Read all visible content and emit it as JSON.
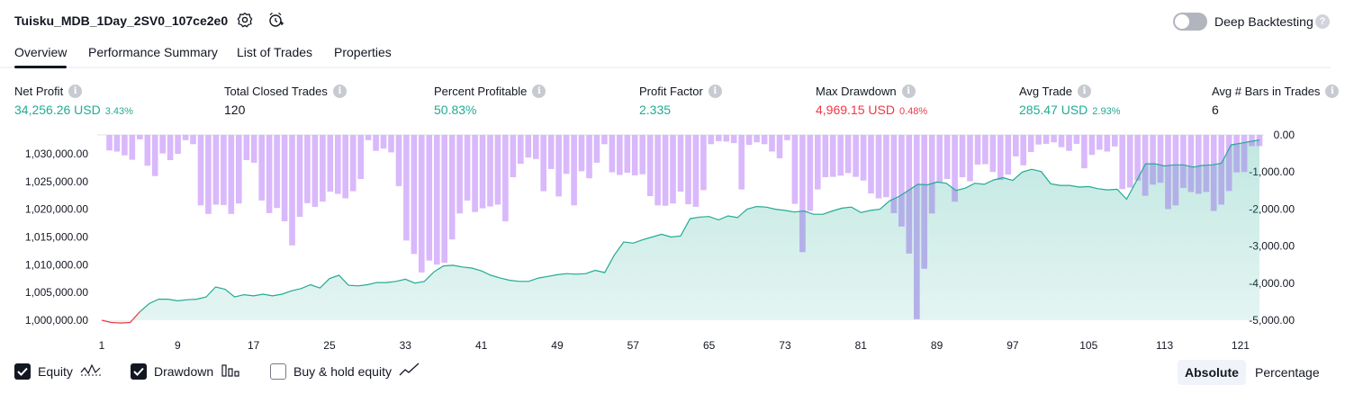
{
  "header": {
    "title": "Tuisku_MDB_1Day_2SV0_107ce2e0",
    "deep_backtesting_label": "Deep Backtesting",
    "deep_backtesting_on": false
  },
  "tabs": [
    {
      "label": "Overview",
      "active": true
    },
    {
      "label": "Performance Summary",
      "active": false
    },
    {
      "label": "List of Trades",
      "active": false
    },
    {
      "label": "Properties",
      "active": false
    }
  ],
  "stats": [
    {
      "label": "Net Profit",
      "value": "34,256.26 USD",
      "sub": "3.43%",
      "color": "green"
    },
    {
      "label": "Total Closed Trades",
      "value": "120",
      "sub": "",
      "color": "dark"
    },
    {
      "label": "Percent Profitable",
      "value": "50.83%",
      "sub": "",
      "color": "green"
    },
    {
      "label": "Profit Factor",
      "value": "2.335",
      "sub": "",
      "color": "green"
    },
    {
      "label": "Max Drawdown",
      "value": "4,969.15 USD",
      "sub": "0.48%",
      "color": "red"
    },
    {
      "label": "Avg Trade",
      "value": "285.47 USD",
      "sub": "2.93%",
      "color": "green"
    },
    {
      "label": "Avg # Bars in Trades",
      "value": "6",
      "sub": "",
      "color": "dark"
    }
  ],
  "chart_data": {
    "type": "line",
    "x_ticks": [
      "1",
      "9",
      "17",
      "25",
      "33",
      "41",
      "49",
      "57",
      "65",
      "73",
      "81",
      "89",
      "97",
      "105",
      "113",
      "121"
    ],
    "left_axis": {
      "ticks": [
        "1,030,000.00",
        "1,025,000.00",
        "1,020,000.00",
        "1,015,000.00",
        "1,010,000.00",
        "1,005,000.00",
        "1,000,000.00"
      ],
      "ylim": [
        1000000,
        1033400
      ]
    },
    "right_axis": {
      "ticks": [
        "0.00",
        "-1,000.00",
        "-2,000.00",
        "-3,000.00",
        "-4,000.00",
        "-5,000.00"
      ],
      "ylim": [
        -5000,
        0
      ]
    },
    "series": [
      {
        "name": "Equity",
        "color": "#22ab94",
        "negative_color": "#f23645",
        "fill_color": "#22ab94",
        "values": [
          1000000,
          999600,
          999500,
          999600,
          1001500,
          1003000,
          1003800,
          1003800,
          1003500,
          1003700,
          1003800,
          1004200,
          1006000,
          1005600,
          1004200,
          1004600,
          1004400,
          1004700,
          1004400,
          1004700,
          1005300,
          1005700,
          1006400,
          1005800,
          1007500,
          1008100,
          1006300,
          1006200,
          1006400,
          1006800,
          1006800,
          1007000,
          1007400,
          1006700,
          1007000,
          1008700,
          1009800,
          1009900,
          1009600,
          1009400,
          1008900,
          1008100,
          1007600,
          1007200,
          1007000,
          1007000,
          1007600,
          1007900,
          1008200,
          1008400,
          1008300,
          1008400,
          1009000,
          1008600,
          1011700,
          1014100,
          1013900,
          1014500,
          1015000,
          1015500,
          1015000,
          1015200,
          1018300,
          1018600,
          1018700,
          1018100,
          1018800,
          1018500,
          1020000,
          1020500,
          1020400,
          1020000,
          1019800,
          1019500,
          1019700,
          1019100,
          1019100,
          1019700,
          1020200,
          1020400,
          1019400,
          1019800,
          1020000,
          1021500,
          1022300,
          1023400,
          1024500,
          1024400,
          1024900,
          1024700,
          1023400,
          1023800,
          1024700,
          1024500,
          1025300,
          1025700,
          1025200,
          1026700,
          1027200,
          1026800,
          1024600,
          1024300,
          1024300,
          1024000,
          1024100,
          1023700,
          1023500,
          1023600,
          1021800,
          1025000,
          1028200,
          1028200,
          1027800,
          1028000,
          1028000,
          1027600,
          1027900,
          1028000,
          1028300,
          1031600,
          1031900,
          1032200,
          1032500
        ]
      },
      {
        "name": "Drawdown",
        "color": "#d9b8fb",
        "overlap_color": "#b3b0e8",
        "values": [
          0,
          -420,
          -450,
          -550,
          -670,
          -120,
          -830,
          -1110,
          -500,
          -680,
          -510,
          -140,
          -250,
          -1900,
          -2130,
          -1880,
          -1890,
          -2130,
          -1850,
          -680,
          -750,
          -1770,
          -2110,
          -1970,
          -2330,
          -2980,
          -2210,
          -1840,
          -1940,
          -1800,
          -1530,
          -1590,
          -1710,
          -1520,
          -1190,
          -140,
          -430,
          -370,
          -470,
          -1380,
          -2850,
          -3210,
          -3710,
          -3390,
          -3500,
          -3450,
          -2820,
          -2120,
          -1770,
          -2080,
          -1980,
          -1930,
          -1880,
          -2330,
          -1140,
          -780,
          -610,
          -650,
          -1520,
          -920,
          -1660,
          -1050,
          -1900,
          -980,
          -1170,
          -750,
          -250,
          -1010,
          -1080,
          -1020,
          -1090,
          -1060,
          -1650,
          -1900,
          -1910,
          -1850,
          -1530,
          -1870,
          -1940,
          -1490,
          -250,
          -170,
          -180,
          -220,
          -1470,
          -270,
          -200,
          -250,
          -450,
          -630,
          -140,
          -1860,
          -3160,
          -2050,
          -1470,
          -1140,
          -1130,
          -1100,
          -1030,
          -1130,
          -1230,
          -1580,
          -1710,
          -1680,
          -2110,
          -2470,
          -3200,
          -4970,
          -3610,
          -2120,
          -1290,
          -1190,
          -1800,
          -1140,
          -1250,
          -800,
          -790,
          -1000,
          -1210,
          -1070,
          -580,
          -820,
          -460,
          -260,
          -240,
          -200,
          -330,
          -430,
          -240,
          -900,
          -540,
          -400,
          -450,
          -310,
          -1460,
          -1420,
          -1230,
          -1640,
          -1340,
          -1290,
          -2000,
          -1900,
          -1430,
          -1540,
          -1590,
          -1540,
          -2050,
          -1880,
          -1510,
          -1010,
          -1000,
          -300,
          -300
        ]
      }
    ],
    "grid": false
  },
  "legend": {
    "items": [
      {
        "label": "Equity",
        "checked": true,
        "icon": "equity-line-icon"
      },
      {
        "label": "Drawdown",
        "checked": true,
        "icon": "drawdown-bars-icon"
      },
      {
        "label": "Buy & hold equity",
        "checked": false,
        "icon": "buy-hold-line-icon"
      }
    ],
    "modes": [
      {
        "label": "Absolute",
        "active": true
      },
      {
        "label": "Percentage",
        "active": false
      }
    ]
  }
}
